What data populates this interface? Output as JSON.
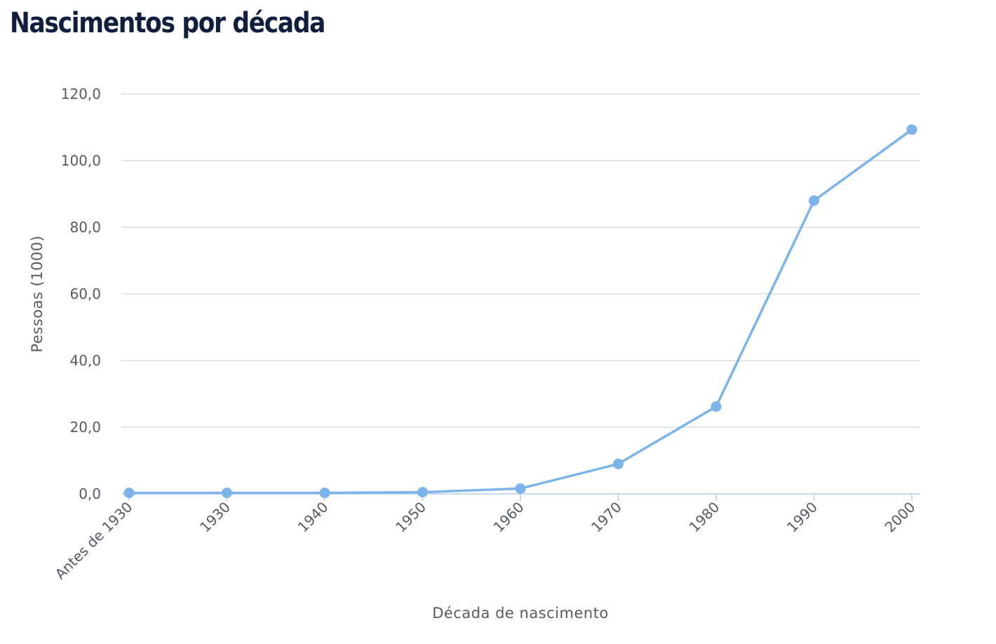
{
  "chart_data": {
    "type": "line",
    "title": "Nascimentos por década",
    "xlabel": "Década de nascimento",
    "ylabel": "Pessoas (1000)",
    "categories": [
      "Antes de 1930",
      "1930",
      "1940",
      "1950",
      "1960",
      "1970",
      "1980",
      "1990",
      "2000"
    ],
    "series": [
      {
        "values": [
          0.3,
          0.3,
          0.3,
          0.5,
          1.6,
          9.0,
          26.2,
          88.0,
          109.3
        ]
      }
    ],
    "yticks": [
      "0,0",
      "20,0",
      "40,0",
      "60,0",
      "80,0",
      "100,0",
      "120,0"
    ],
    "ylim": [
      0,
      120
    ],
    "grid": true,
    "legend": "none",
    "colors": {
      "line": "#7cb3ea",
      "grid": "#d3d6da",
      "axis": "#b7cbe6",
      "title": "#0f1f3d",
      "text": "#555b63"
    }
  }
}
